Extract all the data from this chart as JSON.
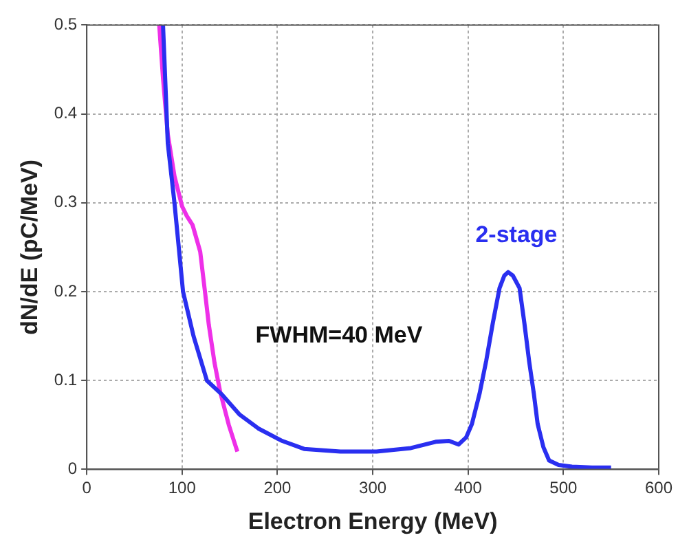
{
  "chart_data": {
    "type": "line",
    "xlabel": "Electron Energy (MeV)",
    "ylabel": "dN/dE (pC/MeV)",
    "annotations": [
      "FWHM=40 MeV"
    ],
    "xlim": [
      0,
      600
    ],
    "xticks": [
      0,
      100,
      200,
      300,
      400,
      500,
      600
    ],
    "ylim": [
      0,
      0.5
    ],
    "yticks": [
      0,
      0.1,
      0.2,
      0.3,
      0.4,
      0.5
    ],
    "grid": true,
    "legend": false,
    "marker": "none",
    "line_style": "solid",
    "series": [
      {
        "name": "2-stage",
        "color": "#2a2ff0",
        "x": [
          80,
          85,
          92,
          101,
          112,
          126,
          142,
          160,
          180,
          205,
          228,
          266,
          304,
          340,
          366,
          380,
          390,
          398,
          404,
          412,
          419,
          426,
          433,
          438,
          442,
          447,
          454,
          459,
          464,
          469,
          473,
          479,
          485,
          495,
          509,
          530,
          550
        ],
        "values": [
          0.5,
          0.367,
          0.3,
          0.2,
          0.15,
          0.1,
          0.084,
          0.062,
          0.046,
          0.032,
          0.023,
          0.02,
          0.02,
          0.024,
          0.031,
          0.032,
          0.028,
          0.036,
          0.051,
          0.085,
          0.122,
          0.165,
          0.204,
          0.218,
          0.222,
          0.218,
          0.204,
          0.165,
          0.122,
          0.085,
          0.051,
          0.025,
          0.01,
          0.005,
          0.003,
          0.002,
          0.002
        ]
      },
      {
        "color": "#ee30e8",
        "x": [
          76,
          80,
          85,
          92,
          100,
          105,
          111,
          119,
          124,
          128,
          134,
          140,
          149,
          158
        ],
        "values": [
          0.5,
          0.44,
          0.377,
          0.33,
          0.296,
          0.285,
          0.275,
          0.245,
          0.2,
          0.163,
          0.12,
          0.087,
          0.05,
          0.02
        ]
      }
    ]
  }
}
